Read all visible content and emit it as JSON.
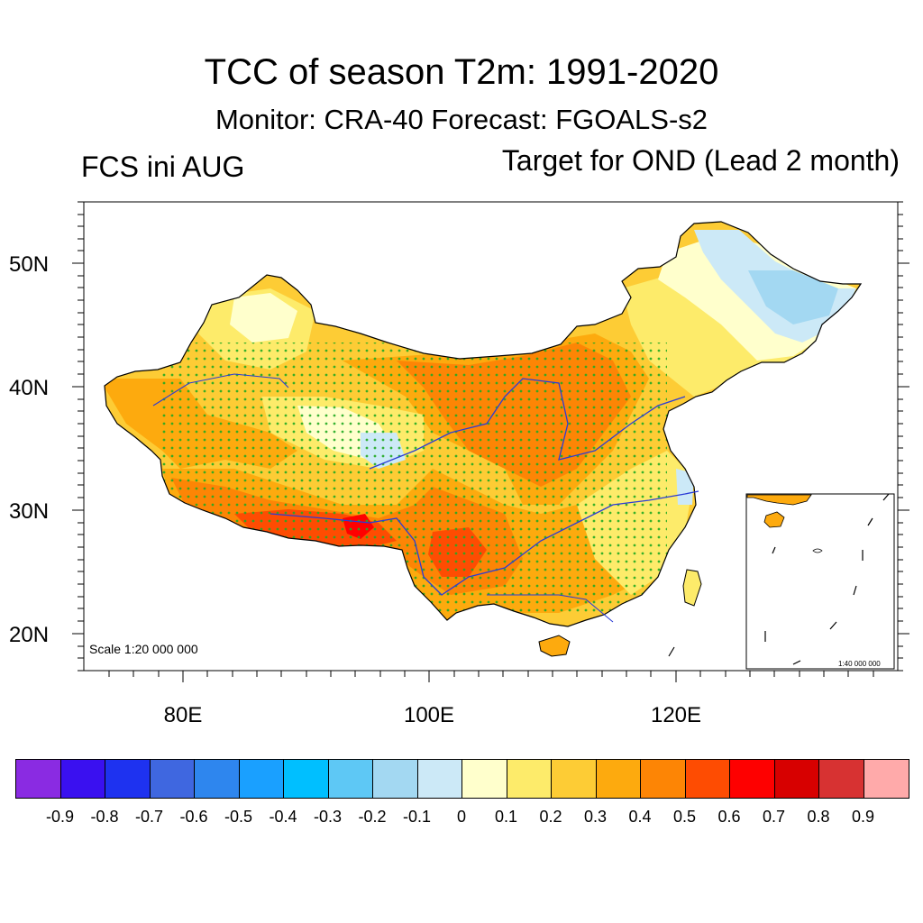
{
  "title": "TCC of season T2m: 1991-2020",
  "subtitle": "Monitor: CRA-40   Forecast: FGOALS-s2",
  "left_label": "FCS ini AUG",
  "right_label": "Target for OND (Lead 2 month)",
  "map": {
    "lat_labels": [
      "50N",
      "40N",
      "30N",
      "20N"
    ],
    "lon_labels": [
      "80E",
      "100E",
      "120E"
    ],
    "scale_main": "Scale 1:20 000 000",
    "scale_inset": "1:40 000 000",
    "stipple_meaning": "significant",
    "colors": {
      "river": "#2b3cd6",
      "stipple": "#22aa22",
      "border": "#000000"
    }
  },
  "colorbar": {
    "colors": [
      "#8a2be2",
      "#3a10f0",
      "#1e32f0",
      "#3f67e0",
      "#2e86ee",
      "#1aa0ff",
      "#00bfff",
      "#5ec8f5",
      "#a3d8f2",
      "#cce9f7",
      "#ffffcc",
      "#fdeb6a",
      "#fdcc35",
      "#fdaa0e",
      "#fd8505",
      "#fe4c02",
      "#fe0000",
      "#d70000",
      "#d73232",
      "#ffaaaa"
    ],
    "labels": [
      "-0.9",
      "-0.8",
      "-0.7",
      "-0.6",
      "-0.5",
      "-0.4",
      "-0.3",
      "-0.2",
      "-0.1",
      "0",
      "0.1",
      "0.2",
      "0.3",
      "0.4",
      "0.5",
      "0.6",
      "0.7",
      "0.8",
      "0.9"
    ]
  }
}
